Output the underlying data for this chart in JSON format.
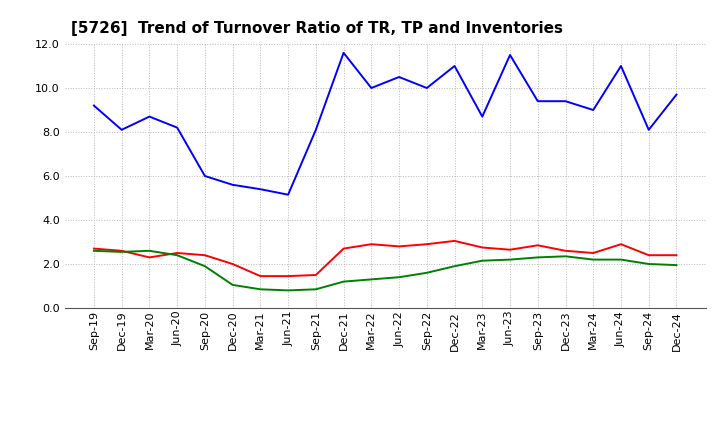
{
  "title": "[5726]  Trend of Turnover Ratio of TR, TP and Inventories",
  "xlabels": [
    "Sep-19",
    "Dec-19",
    "Mar-20",
    "Jun-20",
    "Sep-20",
    "Dec-20",
    "Mar-21",
    "Jun-21",
    "Sep-21",
    "Dec-21",
    "Mar-22",
    "Jun-22",
    "Sep-22",
    "Dec-22",
    "Mar-23",
    "Jun-23",
    "Sep-23",
    "Dec-23",
    "Mar-24",
    "Jun-24",
    "Sep-24",
    "Dec-24"
  ],
  "trade_receivables": [
    2.7,
    2.6,
    2.3,
    2.5,
    2.4,
    2.0,
    1.45,
    1.45,
    1.5,
    2.7,
    2.9,
    2.8,
    2.9,
    3.05,
    2.75,
    2.65,
    2.85,
    2.6,
    2.5,
    2.9,
    2.4,
    2.4
  ],
  "trade_payables": [
    9.2,
    8.1,
    8.7,
    8.2,
    6.0,
    5.6,
    5.4,
    5.15,
    8.1,
    11.6,
    10.0,
    10.5,
    10.0,
    11.0,
    8.7,
    11.5,
    9.4,
    9.4,
    9.0,
    11.0,
    8.1,
    9.7
  ],
  "inventories": [
    2.6,
    2.55,
    2.6,
    2.4,
    1.9,
    1.05,
    0.85,
    0.8,
    0.85,
    1.2,
    1.3,
    1.4,
    1.6,
    1.9,
    2.15,
    2.2,
    2.3,
    2.35,
    2.2,
    2.2,
    2.0,
    1.95
  ],
  "tr_color": "#ff0000",
  "tp_color": "#0000ff",
  "inv_color": "#008000",
  "ylim": [
    0.0,
    12.0
  ],
  "yticks": [
    0.0,
    2.0,
    4.0,
    6.0,
    8.0,
    10.0,
    12.0
  ],
  "background_color": "#ffffff",
  "grid_color": "#b0b0b0",
  "title_fontsize": 11,
  "legend_fontsize": 9,
  "tick_fontsize": 8
}
